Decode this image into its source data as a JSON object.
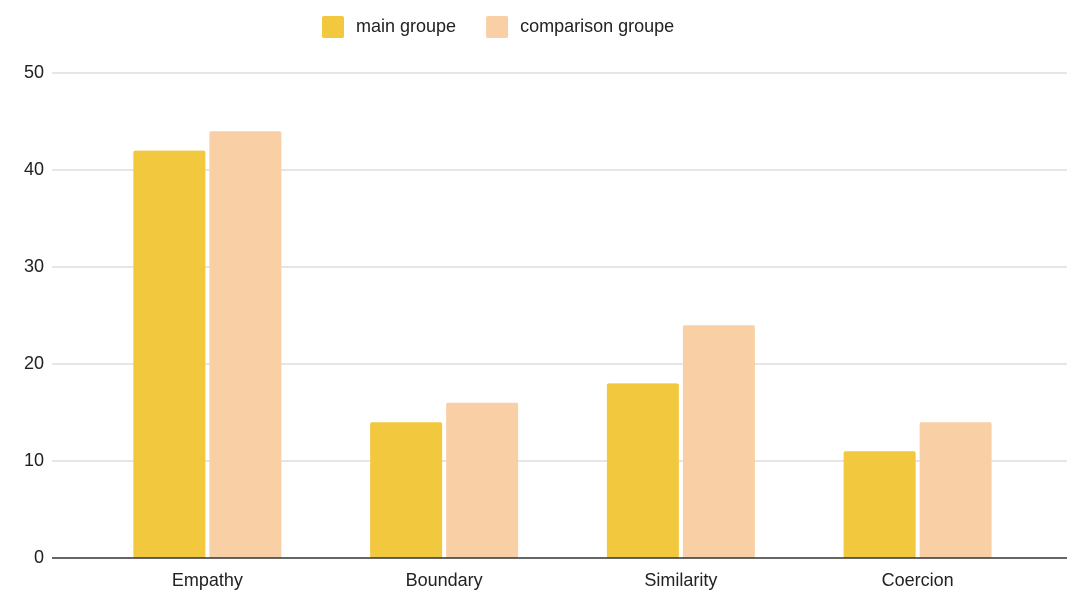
{
  "chart_data": {
    "type": "bar",
    "categories": [
      "Empathy",
      "Boundary",
      "Similarity",
      "Coercion"
    ],
    "series": [
      {
        "name": "main groupe",
        "color": "#f2c83f",
        "values": [
          42,
          14,
          18,
          11
        ]
      },
      {
        "name": "comparison groupe",
        "color": "#f9d0a5",
        "values": [
          44,
          16,
          24,
          14
        ]
      }
    ],
    "ylim": [
      0,
      50
    ],
    "yticks": [
      0,
      10,
      20,
      30,
      40,
      50
    ],
    "grid": true,
    "legend": "top"
  }
}
